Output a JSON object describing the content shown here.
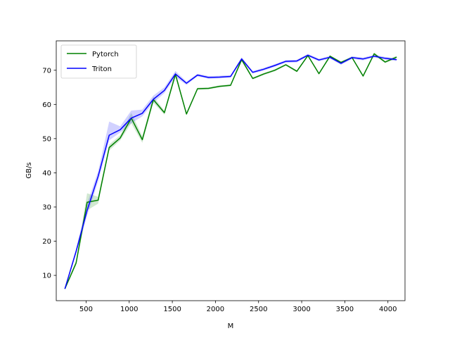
{
  "chart_data": {
    "type": "line",
    "xlabel": "M",
    "ylabel": "GB/s",
    "xlim": [
      154,
      4198
    ],
    "ylim": [
      2.6,
      78.6
    ],
    "xticks": [
      500,
      1000,
      1500,
      2000,
      2500,
      3000,
      3500,
      4000
    ],
    "yticks": [
      10,
      20,
      30,
      40,
      50,
      60,
      70
    ],
    "grid": false,
    "legend_position": "top-left",
    "x": [
      256,
      384,
      512,
      640,
      768,
      896,
      1024,
      1152,
      1280,
      1408,
      1536,
      1664,
      1792,
      1920,
      2048,
      2176,
      2304,
      2432,
      2560,
      2688,
      2816,
      2944,
      3072,
      3200,
      3328,
      3456,
      3584,
      3712,
      3840,
      3968,
      4096
    ],
    "series": [
      {
        "name": "Pytorch",
        "color": "#008000",
        "values": [
          6.2,
          13.6,
          31.4,
          32.0,
          47.4,
          50.2,
          56.0,
          49.7,
          61.4,
          57.6,
          68.8,
          57.2,
          64.6,
          64.7,
          65.3,
          65.6,
          73.1,
          67.6,
          68.9,
          70.0,
          71.6,
          69.7,
          74.3,
          69.0,
          74.1,
          72.3,
          73.7,
          68.3,
          74.8,
          72.4,
          73.8
        ],
        "band_low": [
          6.0,
          13.0,
          29.0,
          31.0,
          46.5,
          49.5,
          54.5,
          48.8,
          60.5,
          57.0,
          68.0,
          56.8,
          64.3,
          64.4,
          65.0,
          65.3,
          72.6,
          67.3,
          68.6,
          69.7,
          71.3,
          69.4,
          74.0,
          68.7,
          73.8,
          72.0,
          73.4,
          68.0,
          74.4,
          72.1,
          73.4
        ],
        "band_high": [
          6.5,
          14.3,
          34.0,
          33.0,
          48.3,
          51.0,
          57.5,
          50.7,
          62.3,
          58.2,
          69.6,
          57.6,
          64.9,
          65.0,
          65.6,
          65.9,
          73.6,
          67.9,
          69.2,
          70.3,
          71.9,
          70.0,
          74.6,
          69.3,
          74.4,
          72.6,
          74.0,
          68.6,
          75.2,
          72.7,
          74.2
        ]
      },
      {
        "name": "Triton",
        "color": "#0000ff",
        "values": [
          6.2,
          17.0,
          29.0,
          39.0,
          51.0,
          52.6,
          56.0,
          57.4,
          61.5,
          64.1,
          68.9,
          66.2,
          68.6,
          67.9,
          68.0,
          68.2,
          73.3,
          69.4,
          70.3,
          71.4,
          72.6,
          72.7,
          74.4,
          73.0,
          73.8,
          72.0,
          73.7,
          73.3,
          74.1,
          73.5,
          73.1
        ],
        "band_low": [
          6.0,
          16.3,
          27.5,
          37.5,
          49.5,
          51.8,
          54.5,
          56.5,
          60.5,
          63.3,
          68.0,
          65.7,
          68.2,
          67.5,
          67.6,
          67.8,
          72.8,
          69.0,
          69.9,
          71.0,
          72.2,
          72.3,
          74.0,
          72.6,
          73.4,
          71.6,
          73.3,
          72.9,
          73.7,
          73.1,
          72.7
        ],
        "band_high": [
          6.5,
          17.8,
          31.0,
          40.5,
          55.0,
          53.6,
          58.2,
          58.5,
          62.6,
          65.0,
          69.8,
          66.7,
          69.0,
          68.3,
          68.4,
          68.6,
          73.8,
          69.8,
          70.7,
          71.8,
          73.0,
          73.1,
          74.8,
          73.4,
          74.2,
          72.4,
          74.1,
          73.7,
          74.5,
          73.9,
          73.5
        ]
      }
    ]
  }
}
